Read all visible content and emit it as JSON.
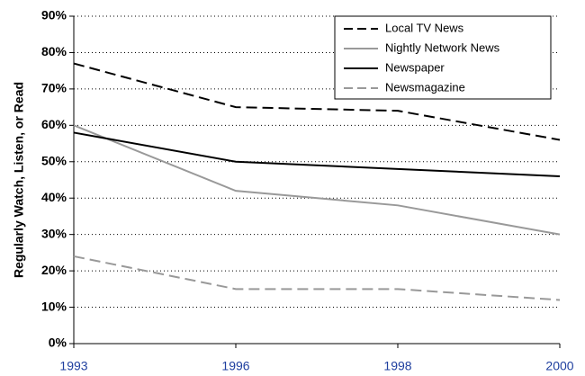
{
  "chart_data": {
    "type": "line",
    "y_label": "Regularly Watch, Listen, or Read",
    "categories": [
      "1993",
      "1996",
      "1998",
      "2000"
    ],
    "series": [
      {
        "name": "Local TV News",
        "color": "#000000",
        "dash": true,
        "values": [
          77,
          65,
          64,
          56
        ]
      },
      {
        "name": "Nightly Network News",
        "color": "#999999",
        "dash": false,
        "values": [
          60,
          42,
          38,
          30
        ]
      },
      {
        "name": "Newspaper",
        "color": "#000000",
        "dash": false,
        "values": [
          58,
          50,
          48,
          46
        ]
      },
      {
        "name": "Newsmagazine",
        "color": "#999999",
        "dash": true,
        "values": [
          24,
          15,
          15,
          12
        ]
      }
    ],
    "ylim": [
      0,
      90
    ],
    "yticks": [
      {
        "value": 0,
        "label": "0%"
      },
      {
        "value": 10,
        "label": "10%"
      },
      {
        "value": 20,
        "label": "20%"
      },
      {
        "value": 30,
        "label": "30%"
      },
      {
        "value": 40,
        "label": "40%"
      },
      {
        "value": 50,
        "label": "50%"
      },
      {
        "value": 60,
        "label": "60%"
      },
      {
        "value": 70,
        "label": "70%"
      },
      {
        "value": 80,
        "label": "80%"
      },
      {
        "value": 90,
        "label": "90%"
      }
    ],
    "grid": true,
    "legend": "top-right"
  }
}
